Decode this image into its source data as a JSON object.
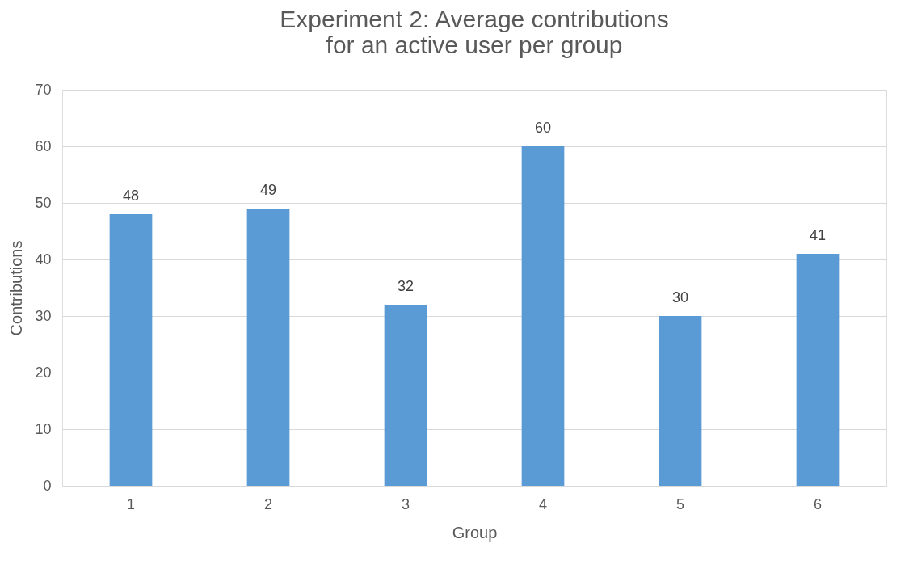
{
  "chart_data": {
    "type": "bar",
    "title": "Experiment 2: Average contributions\nfor an active user per group",
    "xlabel": "Group",
    "ylabel": "Contributions",
    "categories": [
      "1",
      "2",
      "3",
      "4",
      "5",
      "6"
    ],
    "values": [
      48,
      49,
      32,
      60,
      30,
      41
    ],
    "color": "#5b9bd5",
    "data_labels": true,
    "ylim": [
      0,
      70
    ],
    "yticks": [
      0,
      10,
      20,
      30,
      40,
      50,
      60,
      70
    ],
    "grid": "y"
  }
}
